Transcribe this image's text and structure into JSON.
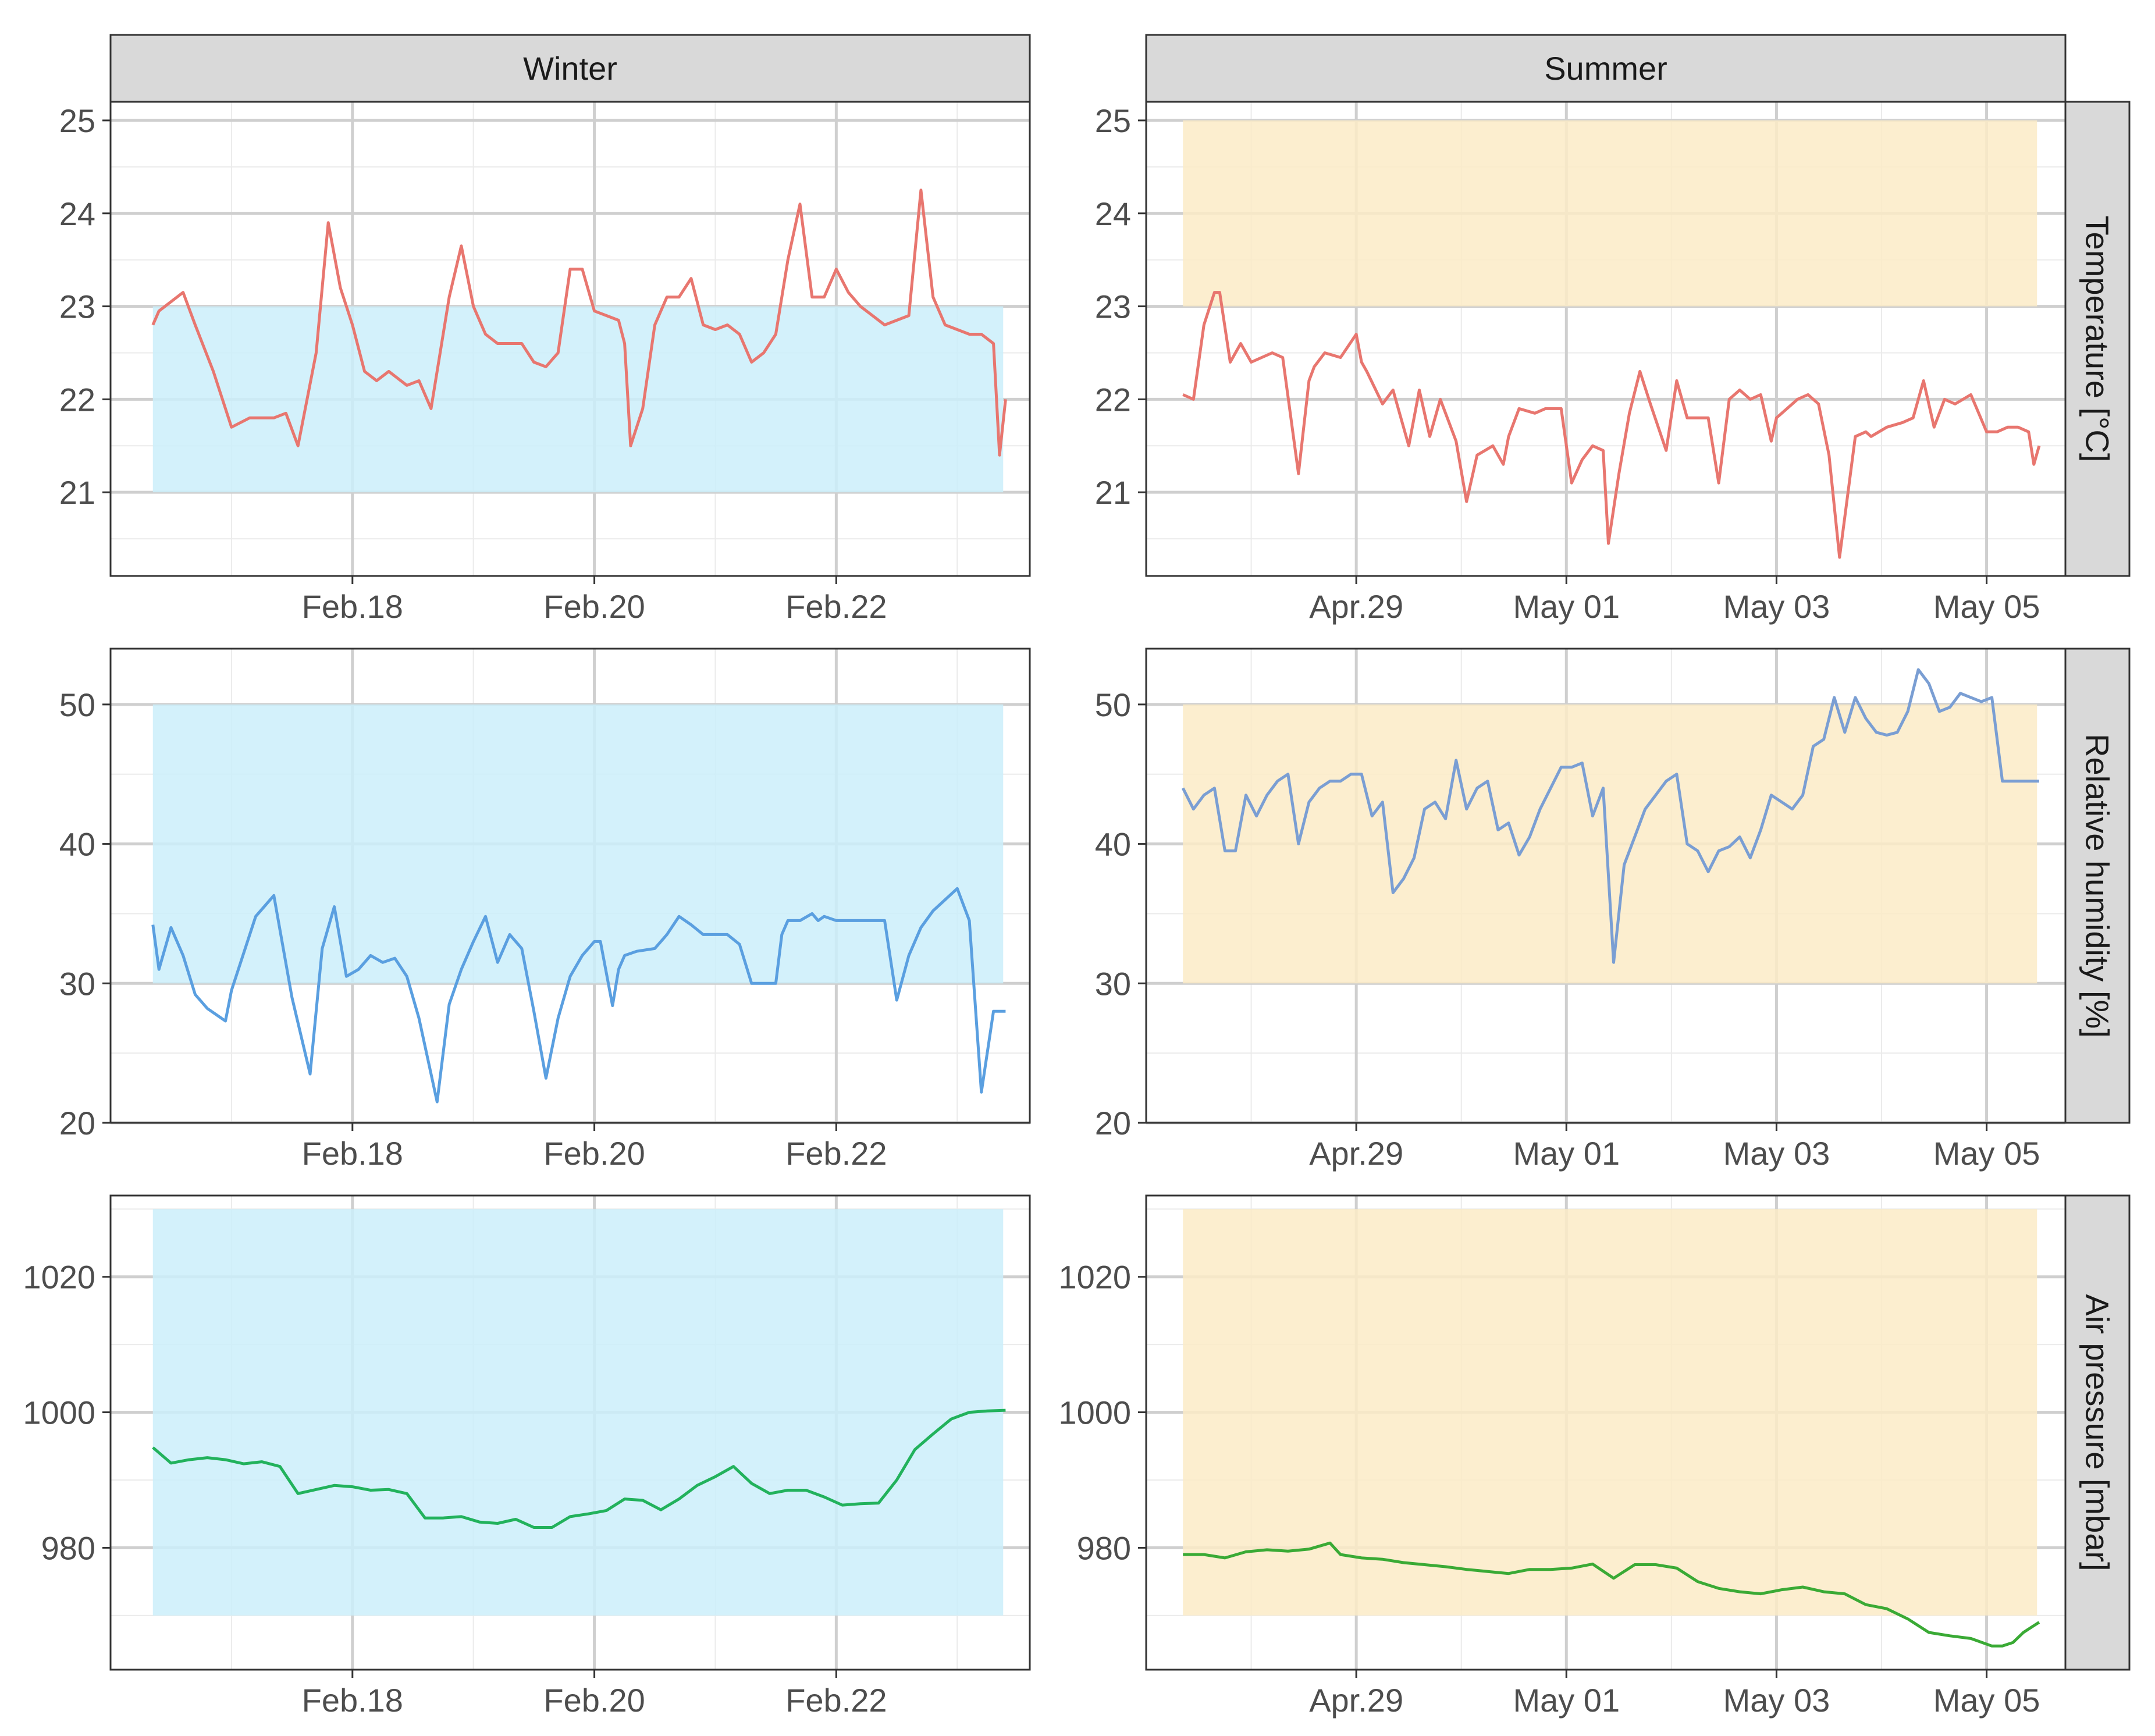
{
  "chart_data": {
    "type": "line",
    "layout": "facet-grid 3 rows x 2 columns",
    "columns": [
      {
        "name": "Winter",
        "x_ticks": [
          "Feb.18",
          "Feb.20",
          "Feb.22"
        ],
        "x_tick_days": [
          2,
          4,
          6
        ],
        "x_range_days": [
          0,
          7.6
        ],
        "band_color": "#cbeffa"
      },
      {
        "name": "Summer",
        "x_ticks": [
          "Apr.29",
          "May 01",
          "May 03",
          "May 05"
        ],
        "x_tick_days": [
          2,
          4,
          6,
          8
        ],
        "x_range_days": [
          0,
          8.75
        ],
        "band_color": "#fcebc7"
      }
    ],
    "rows": [
      {
        "strip": "Temperature [°C]",
        "color": "#e8766f",
        "y_range": [
          20.1,
          25.2
        ],
        "y_ticks": [
          "25",
          "24",
          "23",
          "22",
          "21"
        ],
        "y_tick_values": [
          25,
          24,
          23,
          22,
          21
        ],
        "target_band": {
          "Winter": [
            21,
            23
          ],
          "Summer": [
            23,
            25
          ]
        },
        "series": {
          "Winter": {
            "x": [
              0.35,
              0.4,
              0.5,
              0.6,
              0.7,
              0.85,
              1.0,
              1.15,
              1.25,
              1.35,
              1.45,
              1.55,
              1.7,
              1.8,
              1.9,
              2.0,
              2.1,
              2.2,
              2.3,
              2.4,
              2.45,
              2.55,
              2.65,
              2.7,
              2.8,
              2.9,
              3.0,
              3.1,
              3.2,
              3.3,
              3.4,
              3.5,
              3.6,
              3.7,
              3.8,
              3.9,
              4.0,
              4.1,
              4.2,
              4.25,
              4.3,
              4.4,
              4.5,
              4.6,
              4.7,
              4.8,
              4.9,
              5.0,
              5.1,
              5.2,
              5.3,
              5.4,
              5.5,
              5.6,
              5.7,
              5.8,
              5.9,
              6.0,
              6.1,
              6.2,
              6.3,
              6.4,
              6.5,
              6.6,
              6.7,
              6.8,
              6.9,
              7.0,
              7.1,
              7.2,
              7.3,
              7.35,
              7.4
            ],
            "y": [
              22.8,
              22.95,
              23.05,
              23.15,
              22.8,
              22.3,
              21.7,
              21.8,
              21.8,
              21.8,
              21.85,
              21.5,
              22.5,
              23.9,
              23.2,
              22.8,
              22.3,
              22.2,
              22.3,
              22.2,
              22.15,
              22.2,
              21.9,
              22.3,
              23.1,
              23.65,
              23.0,
              22.7,
              22.6,
              22.6,
              22.6,
              22.4,
              22.35,
              22.5,
              23.4,
              23.4,
              22.95,
              22.9,
              22.85,
              22.6,
              21.5,
              21.9,
              22.8,
              23.1,
              23.1,
              23.3,
              22.8,
              22.75,
              22.8,
              22.7,
              22.4,
              22.5,
              22.7,
              23.5,
              24.1,
              23.1,
              23.1,
              23.4,
              23.15,
              23.0,
              22.9,
              22.8,
              22.85,
              22.9,
              24.25,
              23.1,
              22.8,
              22.75,
              22.7,
              22.7,
              22.6,
              21.4,
              22.0
            ]
          },
          "Summer": {
            "x": [
              0.35,
              0.45,
              0.55,
              0.65,
              0.7,
              0.8,
              0.9,
              1.0,
              1.1,
              1.2,
              1.3,
              1.45,
              1.55,
              1.6,
              1.7,
              1.85,
              2.0,
              2.05,
              2.1,
              2.25,
              2.35,
              2.5,
              2.6,
              2.7,
              2.8,
              2.95,
              3.05,
              3.15,
              3.3,
              3.4,
              3.45,
              3.55,
              3.7,
              3.8,
              3.95,
              4.05,
              4.15,
              4.25,
              4.35,
              4.4,
              4.5,
              4.6,
              4.7,
              4.8,
              4.95,
              5.05,
              5.15,
              5.25,
              5.35,
              5.45,
              5.55,
              5.65,
              5.75,
              5.85,
              5.95,
              6.0,
              6.1,
              6.2,
              6.3,
              6.4,
              6.5,
              6.6,
              6.75,
              6.85,
              6.9,
              7.05,
              7.2,
              7.3,
              7.4,
              7.5,
              7.6,
              7.7,
              7.85,
              8.0,
              8.1,
              8.2,
              8.3,
              8.4,
              8.45,
              8.5
            ],
            "y": [
              22.05,
              22.0,
              22.8,
              23.15,
              23.15,
              22.4,
              22.6,
              22.4,
              22.45,
              22.5,
              22.45,
              21.2,
              22.2,
              22.35,
              22.5,
              22.45,
              22.7,
              22.4,
              22.3,
              21.95,
              22.1,
              21.5,
              22.1,
              21.6,
              22.0,
              21.55,
              20.9,
              21.4,
              21.5,
              21.3,
              21.6,
              21.9,
              21.85,
              21.9,
              21.9,
              21.1,
              21.35,
              21.5,
              21.45,
              20.45,
              21.2,
              21.85,
              22.3,
              21.95,
              21.45,
              22.2,
              21.8,
              21.8,
              21.8,
              21.1,
              22.0,
              22.1,
              22.0,
              22.05,
              21.55,
              21.8,
              21.9,
              22.0,
              22.05,
              21.95,
              21.4,
              20.3,
              21.6,
              21.65,
              21.6,
              21.7,
              21.75,
              21.8,
              22.2,
              21.7,
              22.0,
              21.95,
              22.05,
              21.65,
              21.65,
              21.7,
              21.7,
              21.65,
              21.3,
              21.5
            ]
          }
        }
      },
      {
        "strip": "Relative humidity [%]",
        "color": "#5a9fe0",
        "summer_color": "#7a9ed3",
        "y_range": [
          20,
          54
        ],
        "y_ticks": [
          "50",
          "40",
          "30",
          "20"
        ],
        "y_tick_values": [
          50,
          40,
          30,
          20
        ],
        "target_band": {
          "Winter": [
            30,
            50
          ],
          "Summer": [
            30,
            50
          ]
        },
        "series": {
          "Winter": {
            "x": [
              0.35,
              0.4,
              0.5,
              0.6,
              0.7,
              0.8,
              0.95,
              1.0,
              1.2,
              1.35,
              1.5,
              1.65,
              1.75,
              1.85,
              1.95,
              2.05,
              2.15,
              2.25,
              2.35,
              2.45,
              2.55,
              2.7,
              2.8,
              2.9,
              3.0,
              3.1,
              3.2,
              3.3,
              3.4,
              3.5,
              3.6,
              3.7,
              3.8,
              3.9,
              4.0,
              4.05,
              4.15,
              4.2,
              4.25,
              4.35,
              4.5,
              4.6,
              4.7,
              4.8,
              4.9,
              5.0,
              5.1,
              5.2,
              5.3,
              5.4,
              5.5,
              5.55,
              5.6,
              5.7,
              5.8,
              5.85,
              5.9,
              6.0,
              6.1,
              6.2,
              6.3,
              6.4,
              6.5,
              6.6,
              6.7,
              6.8,
              6.9,
              7.0,
              7.1,
              7.2,
              7.3,
              7.35,
              7.4
            ],
            "y": [
              34.2,
              31.0,
              34.0,
              32.0,
              29.2,
              28.2,
              27.3,
              29.5,
              34.8,
              36.3,
              29.0,
              23.5,
              32.5,
              35.5,
              30.5,
              31.0,
              32.0,
              31.5,
              31.8,
              30.5,
              27.5,
              21.5,
              28.5,
              31.0,
              33.0,
              34.8,
              31.5,
              33.5,
              32.5,
              28.0,
              23.2,
              27.5,
              30.5,
              32.0,
              33.0,
              33.0,
              28.4,
              31.0,
              32.0,
              32.3,
              32.5,
              33.5,
              34.8,
              34.2,
              33.5,
              33.5,
              33.5,
              32.8,
              30.0,
              30.0,
              30.0,
              33.5,
              34.5,
              34.5,
              35.0,
              34.5,
              34.8,
              34.5,
              34.5,
              34.5,
              34.5,
              34.5,
              28.8,
              32.0,
              34.0,
              35.2,
              36.0,
              36.8,
              34.5,
              22.2,
              28.0,
              28.0,
              28.0
            ]
          },
          "Summer": {
            "x": [
              0.35,
              0.45,
              0.55,
              0.65,
              0.75,
              0.85,
              0.95,
              1.05,
              1.15,
              1.25,
              1.35,
              1.45,
              1.55,
              1.65,
              1.75,
              1.85,
              1.95,
              2.05,
              2.15,
              2.25,
              2.35,
              2.45,
              2.55,
              2.65,
              2.75,
              2.85,
              2.95,
              3.05,
              3.15,
              3.25,
              3.35,
              3.45,
              3.55,
              3.65,
              3.75,
              3.85,
              3.95,
              4.05,
              4.15,
              4.25,
              4.35,
              4.45,
              4.55,
              4.65,
              4.75,
              4.85,
              4.95,
              5.05,
              5.15,
              5.25,
              5.35,
              5.45,
              5.55,
              5.65,
              5.75,
              5.85,
              5.95,
              6.05,
              6.15,
              6.25,
              6.35,
              6.45,
              6.55,
              6.65,
              6.75,
              6.85,
              6.95,
              7.05,
              7.15,
              7.25,
              7.35,
              7.45,
              7.55,
              7.65,
              7.75,
              7.85,
              7.95,
              8.05,
              8.15,
              8.25,
              8.35,
              8.45,
              8.5
            ],
            "y": [
              44.0,
              42.5,
              43.5,
              44.0,
              39.5,
              39.5,
              43.5,
              42.0,
              43.5,
              44.5,
              45.0,
              40.0,
              43.0,
              44.0,
              44.5,
              44.5,
              45.0,
              45.0,
              42.0,
              43.0,
              36.5,
              37.5,
              39.0,
              42.5,
              43.0,
              41.8,
              46.0,
              42.5,
              44.0,
              44.5,
              41.0,
              41.5,
              39.2,
              40.5,
              42.5,
              44.0,
              45.5,
              45.5,
              45.8,
              42.0,
              44.0,
              31.5,
              38.5,
              40.5,
              42.5,
              43.5,
              44.5,
              45.0,
              40.0,
              39.5,
              38.0,
              39.5,
              39.8,
              40.5,
              39.0,
              41.0,
              43.5,
              43.0,
              42.5,
              43.5,
              47.0,
              47.5,
              50.5,
              48.0,
              50.5,
              49.0,
              48.0,
              47.8,
              48.0,
              49.5,
              52.5,
              51.5,
              49.5,
              49.8,
              50.8,
              50.5,
              50.2,
              50.5,
              44.5,
              44.5,
              44.5,
              44.5,
              44.5
            ]
          }
        }
      },
      {
        "strip": "Air pressure [mbar]",
        "color": "#22b25c",
        "summer_color": "#3aaa35",
        "y_range": [
          962,
          1032
        ],
        "y_ticks": [
          "1020",
          "1000",
          "980"
        ],
        "y_tick_values": [
          1020,
          1000,
          980
        ],
        "target_band": {
          "Winter": [
            970,
            1030
          ],
          "Summer": [
            970,
            1030
          ]
        },
        "series": {
          "Winter": {
            "x": [
              0.35,
              0.5,
              0.65,
              0.8,
              0.95,
              1.1,
              1.25,
              1.4,
              1.55,
              1.7,
              1.85,
              2.0,
              2.15,
              2.3,
              2.45,
              2.6,
              2.75,
              2.9,
              3.05,
              3.2,
              3.35,
              3.5,
              3.65,
              3.8,
              3.95,
              4.1,
              4.25,
              4.4,
              4.55,
              4.7,
              4.85,
              5.0,
              5.15,
              5.3,
              5.45,
              5.6,
              5.75,
              5.9,
              6.05,
              6.2,
              6.35,
              6.5,
              6.65,
              6.8,
              6.95,
              7.1,
              7.25,
              7.4
            ],
            "y": [
              994.8,
              992.5,
              993.0,
              993.3,
              993.0,
              992.4,
              992.7,
              992.0,
              988.0,
              988.6,
              989.2,
              989.0,
              988.5,
              988.6,
              988.0,
              984.4,
              984.4,
              984.6,
              983.8,
              983.6,
              984.2,
              983.0,
              983.0,
              984.6,
              985.0,
              985.5,
              987.2,
              987.0,
              985.6,
              987.2,
              989.2,
              990.5,
              992.0,
              989.5,
              988.0,
              988.5,
              988.5,
              987.5,
              986.3,
              986.5,
              986.6,
              990.0,
              994.5,
              996.8,
              999.0,
              1000.0,
              1000.2,
              1000.3
            ]
          },
          "Summer": {
            "x": [
              0.35,
              0.55,
              0.75,
              0.95,
              1.15,
              1.35,
              1.55,
              1.75,
              1.85,
              2.05,
              2.25,
              2.45,
              2.65,
              2.85,
              3.05,
              3.25,
              3.45,
              3.65,
              3.85,
              4.05,
              4.25,
              4.45,
              4.65,
              4.85,
              5.05,
              5.25,
              5.45,
              5.65,
              5.85,
              6.05,
              6.25,
              6.45,
              6.65,
              6.85,
              7.05,
              7.25,
              7.45,
              7.65,
              7.85,
              8.05,
              8.15,
              8.25,
              8.35,
              8.45,
              8.5
            ],
            "y": [
              979.0,
              979.0,
              978.5,
              979.4,
              979.7,
              979.5,
              979.8,
              980.7,
              979.0,
              978.5,
              978.3,
              977.8,
              977.5,
              977.2,
              976.8,
              976.5,
              976.2,
              976.8,
              976.8,
              977.0,
              977.6,
              975.5,
              977.5,
              977.5,
              977.0,
              975.0,
              974.0,
              973.5,
              973.2,
              973.8,
              974.2,
              973.5,
              973.2,
              971.6,
              971.0,
              969.5,
              967.5,
              967.0,
              966.6,
              965.5,
              965.5,
              966.0,
              967.5,
              968.5,
              969.0
            ]
          }
        }
      }
    ]
  }
}
